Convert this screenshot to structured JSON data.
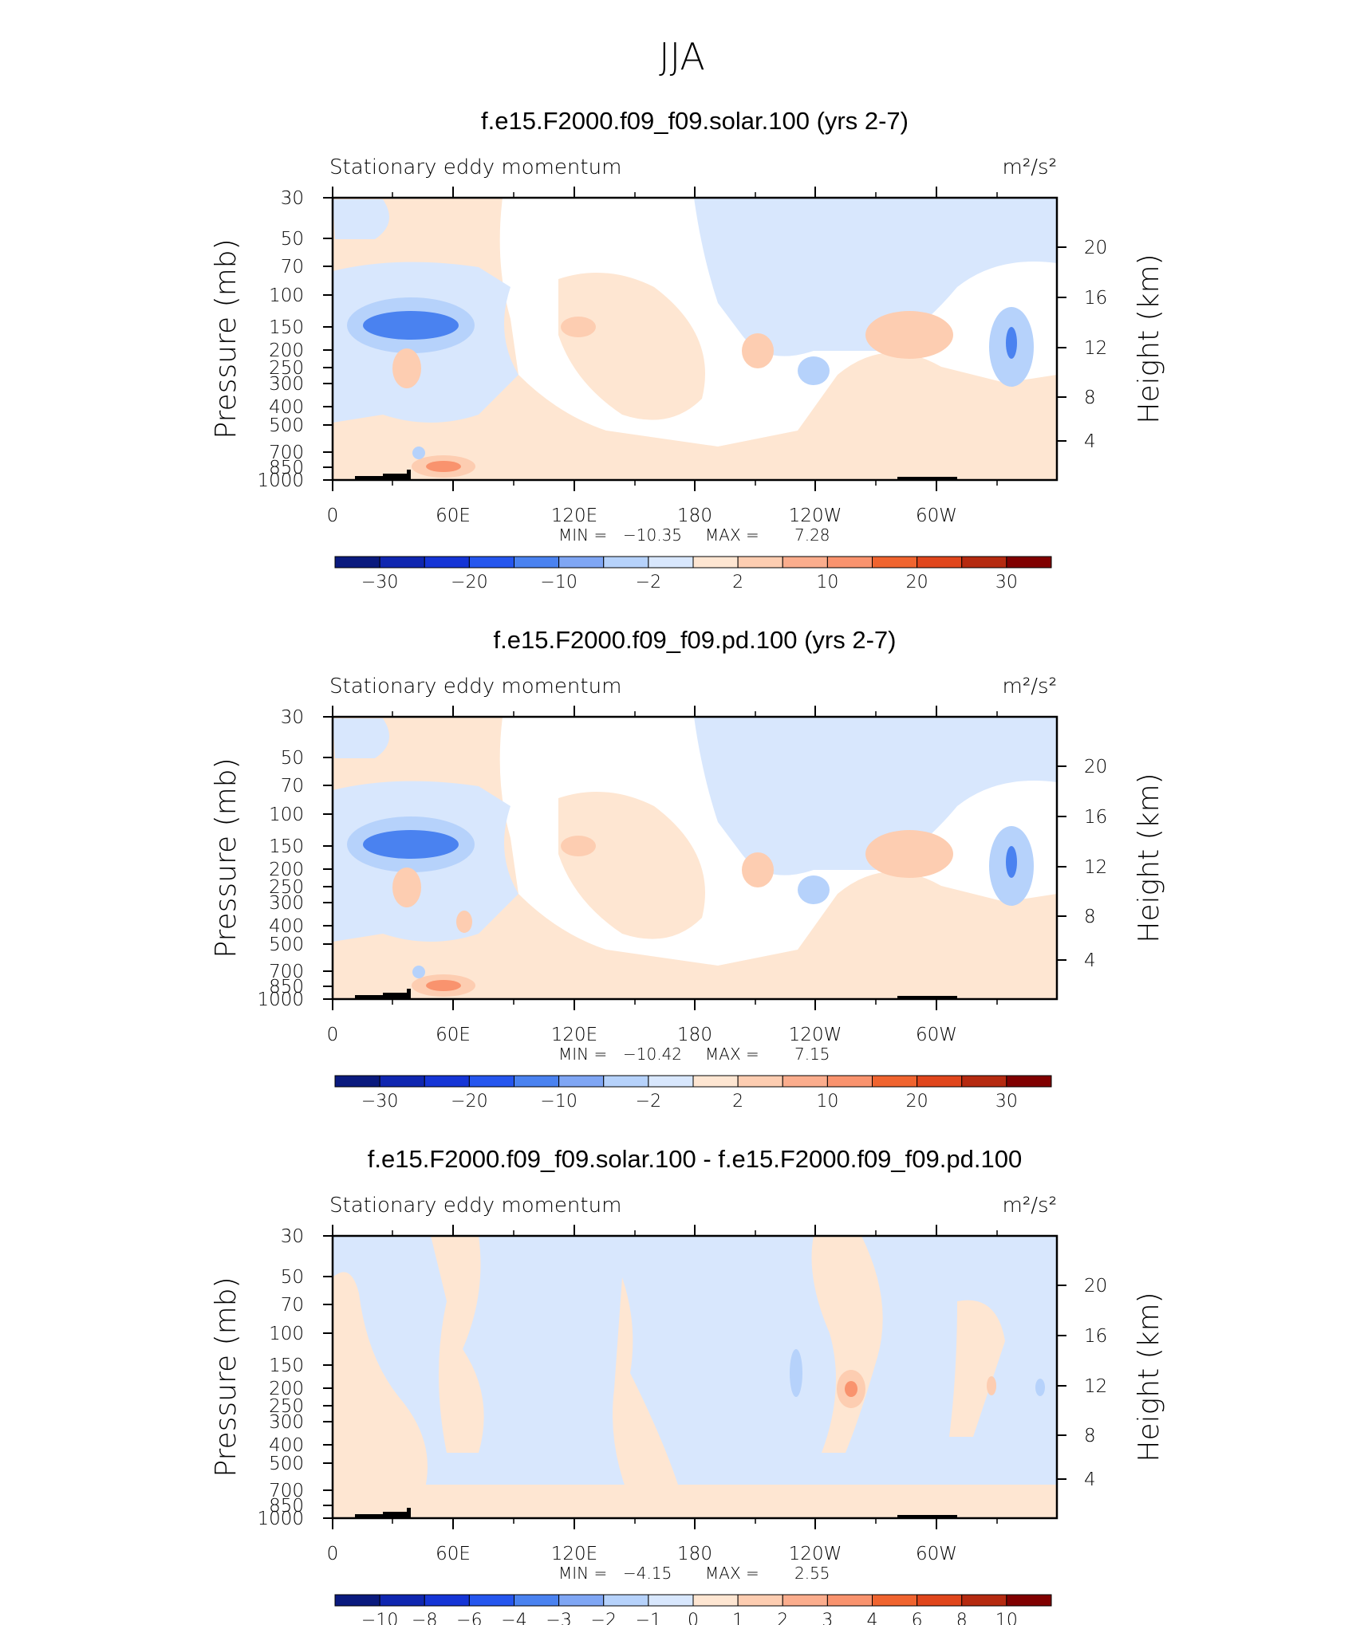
{
  "figure_title": "JJA",
  "colors": {
    "c_n30": "#0a1a7e",
    "c_n20": "#1535d6",
    "c_n10": "#4a82f0",
    "c_n2": "#b6d2fb",
    "c_n0": "#d8e7fd",
    "c_p0": "#fee6d2",
    "c_p2": "#fdcdb1",
    "c_p10": "#f9936e",
    "c_p20": "#e0461c",
    "c_p30": "#800000"
  },
  "chart_data": [
    {
      "type": "heatmap",
      "title": "f.e15.F2000.f09_f09.solar.100 (yrs 2-7)",
      "left_label": "Stationary eddy momentum",
      "units_label": "m²/s²",
      "ylabel": "Pressure (mb)",
      "ylabel_right": "Height (km)",
      "x_ticks": [
        "0",
        "60E",
        "120E",
        "180",
        "120W",
        "60W"
      ],
      "y_ticks": [
        "30",
        "50",
        "70",
        "100",
        "150",
        "200",
        "250",
        "300",
        "400",
        "500",
        "700",
        "850",
        "1000"
      ],
      "y_ticks_right": [
        "20",
        "16",
        "12",
        "8",
        "4"
      ],
      "min_label": "MIN =",
      "min_value": "−10.35",
      "max_label": "MAX =",
      "max_value": "7.28",
      "colorbar_labels": [
        "−30",
        "−20",
        "−10",
        "−2",
        "2",
        "10",
        "20",
        "30"
      ],
      "min": -10.35,
      "max": 7.28
    },
    {
      "type": "heatmap",
      "title": "f.e15.F2000.f09_f09.pd.100 (yrs 2-7)",
      "left_label": "Stationary eddy momentum",
      "units_label": "m²/s²",
      "ylabel": "Pressure (mb)",
      "ylabel_right": "Height (km)",
      "x_ticks": [
        "0",
        "60E",
        "120E",
        "180",
        "120W",
        "60W"
      ],
      "y_ticks": [
        "30",
        "50",
        "70",
        "100",
        "150",
        "200",
        "250",
        "300",
        "400",
        "500",
        "700",
        "850",
        "1000"
      ],
      "y_ticks_right": [
        "20",
        "16",
        "12",
        "8",
        "4"
      ],
      "min_label": "MIN =",
      "min_value": "−10.42",
      "max_label": "MAX =",
      "max_value": "7.15",
      "colorbar_labels": [
        "−30",
        "−20",
        "−10",
        "−2",
        "2",
        "10",
        "20",
        "30"
      ],
      "min": -10.42,
      "max": 7.15
    },
    {
      "type": "heatmap",
      "title": "f.e15.F2000.f09_f09.solar.100 - f.e15.F2000.f09_f09.pd.100",
      "left_label": "Stationary eddy momentum",
      "units_label": "m²/s²",
      "ylabel": "Pressure (mb)",
      "ylabel_right": "Height (km)",
      "x_ticks": [
        "0",
        "60E",
        "120E",
        "180",
        "120W",
        "60W"
      ],
      "y_ticks": [
        "30",
        "50",
        "70",
        "100",
        "150",
        "200",
        "250",
        "300",
        "400",
        "500",
        "700",
        "850",
        "1000"
      ],
      "y_ticks_right": [
        "20",
        "16",
        "12",
        "8",
        "4"
      ],
      "min_label": "MIN =",
      "min_value": "−4.15",
      "max_label": "MAX =",
      "max_value": "2.55",
      "colorbar_labels": [
        "−10",
        "−8",
        "−6",
        "−4",
        "−3",
        "−2",
        "−1",
        "0",
        "1",
        "2",
        "3",
        "4",
        "6",
        "8",
        "10"
      ],
      "min": -4.15,
      "max": 2.55
    }
  ]
}
